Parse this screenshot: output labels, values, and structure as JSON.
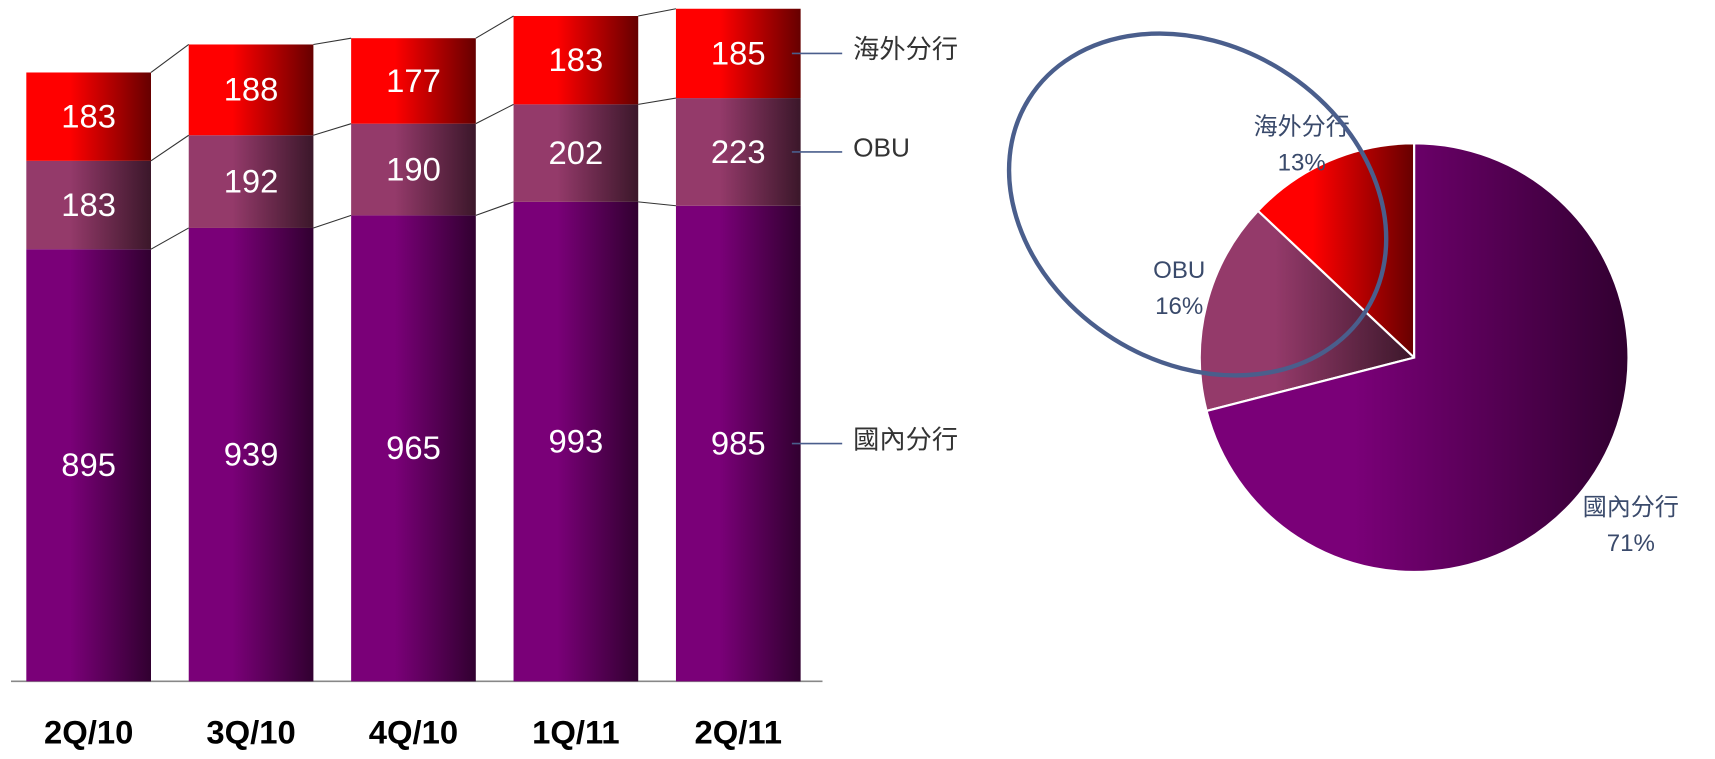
{
  "chart_data": [
    {
      "type": "bar",
      "stacked": true,
      "categories": [
        "2Q/10",
        "3Q/10",
        "4Q/10",
        "1Q/11",
        "2Q/11"
      ],
      "series": [
        {
          "name": "國內分行",
          "color": "#7a0078",
          "values": [
            895,
            939,
            965,
            993,
            985
          ]
        },
        {
          "name": "OBU",
          "color": "#943a6a",
          "values": [
            183,
            192,
            190,
            202,
            223
          ]
        },
        {
          "name": "海外分行",
          "color": "#ff0000",
          "values": [
            183,
            188,
            177,
            183,
            185
          ]
        }
      ]
    },
    {
      "type": "pie",
      "categories": [
        "海外分行",
        "OBU",
        "國內分行"
      ],
      "values": [
        13,
        16,
        71
      ],
      "value_labels": [
        "13%",
        "16%",
        "71%"
      ],
      "colors": [
        "#ff0000",
        "#943a6a",
        "#7a0078"
      ]
    }
  ]
}
